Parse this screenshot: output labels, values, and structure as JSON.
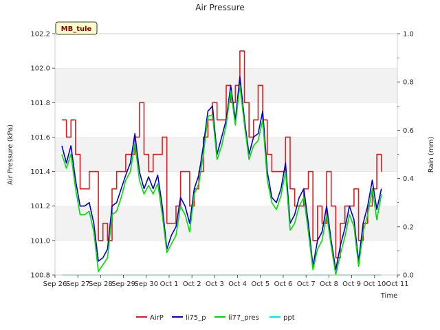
{
  "chart_data": {
    "type": "line",
    "title": "Air Pressure",
    "xlabel": "Time",
    "ylabel": "Air Pressure (kPa)",
    "y2label": "Rain (mm)",
    "badge": "MB_tule",
    "x_ticks": [
      "Sep 26",
      "Sep 27",
      "Sep 28",
      "Sep 29",
      "Sep 30",
      "Oct 1",
      "Oct 2",
      "Oct 3",
      "Oct 4",
      "Oct 5",
      "Oct 6",
      "Oct 7",
      "Oct 8",
      "Oct 9",
      "Oct 10",
      "Oct 11"
    ],
    "xlim": [
      0,
      15
    ],
    "ylim": [
      100.8,
      102.2
    ],
    "y_ticks": [
      "100.8",
      "101.0",
      "101.2",
      "101.4",
      "101.6",
      "101.8",
      "102.0",
      "102.2"
    ],
    "y2lim": [
      0.0,
      1.0
    ],
    "y2_ticks": [
      "0.0",
      "0.2",
      "0.4",
      "0.6",
      "0.8",
      "1.0"
    ],
    "grid_bands": true,
    "legend_position": "bottom",
    "x": [
      0.3,
      0.5,
      0.7,
      0.9,
      1.1,
      1.3,
      1.5,
      1.7,
      1.9,
      2.1,
      2.3,
      2.5,
      2.7,
      2.9,
      3.1,
      3.3,
      3.5,
      3.7,
      3.9,
      4.1,
      4.3,
      4.5,
      4.7,
      4.9,
      5.1,
      5.3,
      5.5,
      5.7,
      5.9,
      6.1,
      6.3,
      6.5,
      6.7,
      6.9,
      7.1,
      7.3,
      7.5,
      7.7,
      7.9,
      8.1,
      8.3,
      8.5,
      8.7,
      8.9,
      9.1,
      9.3,
      9.5,
      9.7,
      9.9,
      10.1,
      10.3,
      10.5,
      10.7,
      10.9,
      11.1,
      11.3,
      11.5,
      11.7,
      11.9,
      12.1,
      12.3,
      12.5,
      12.7,
      12.9,
      13.1,
      13.3,
      13.5,
      13.7,
      13.9,
      14.1,
      14.3
    ],
    "series": [
      {
        "name": "AirP",
        "color": "#e41a1c",
        "axis": "left",
        "values": [
          101.7,
          101.6,
          101.7,
          101.5,
          101.3,
          101.3,
          101.4,
          101.4,
          101.0,
          101.1,
          101.0,
          101.3,
          101.4,
          101.4,
          101.5,
          101.5,
          101.6,
          101.8,
          101.5,
          101.4,
          101.5,
          101.5,
          101.6,
          101.1,
          101.1,
          101.2,
          101.4,
          101.4,
          101.2,
          101.3,
          101.4,
          101.6,
          101.7,
          101.8,
          101.7,
          101.7,
          101.9,
          101.8,
          101.9,
          102.1,
          101.8,
          101.6,
          101.7,
          101.9,
          101.7,
          101.5,
          101.4,
          101.4,
          101.4,
          101.6,
          101.3,
          101.2,
          101.2,
          101.3,
          101.4,
          101.0,
          101.2,
          101.1,
          101.4,
          101.2,
          100.9,
          101.1,
          101.2,
          101.2,
          101.3,
          101.0,
          101.1,
          101.2,
          101.3,
          101.5,
          101.4
        ]
      },
      {
        "name": "li75_p",
        "color": "#0000cc",
        "axis": "left",
        "values": [
          101.55,
          101.45,
          101.55,
          101.35,
          101.2,
          101.2,
          101.22,
          101.1,
          100.88,
          100.9,
          100.95,
          101.2,
          101.22,
          101.3,
          101.38,
          101.45,
          101.62,
          101.4,
          101.3,
          101.37,
          101.3,
          101.38,
          101.2,
          100.95,
          101.03,
          101.08,
          101.25,
          101.2,
          101.1,
          101.3,
          101.38,
          101.55,
          101.75,
          101.78,
          101.5,
          101.6,
          101.7,
          101.9,
          101.7,
          101.95,
          101.7,
          101.5,
          101.6,
          101.62,
          101.75,
          101.4,
          101.25,
          101.22,
          101.3,
          101.45,
          101.1,
          101.15,
          101.25,
          101.3,
          101.1,
          100.85,
          101.0,
          101.05,
          101.2,
          101.0,
          100.83,
          100.97,
          101.07,
          101.2,
          101.12,
          100.88,
          101.1,
          101.2,
          101.35,
          101.18,
          101.3
        ]
      },
      {
        "name": "li77_pres",
        "color": "#00dd00",
        "axis": "left",
        "values": [
          101.5,
          101.42,
          101.5,
          101.3,
          101.15,
          101.15,
          101.17,
          101.05,
          100.82,
          100.86,
          100.9,
          101.15,
          101.17,
          101.25,
          101.35,
          101.4,
          101.57,
          101.35,
          101.27,
          101.32,
          101.27,
          101.33,
          101.15,
          100.93,
          100.98,
          101.03,
          101.2,
          101.15,
          101.05,
          101.27,
          101.33,
          101.5,
          101.72,
          101.73,
          101.47,
          101.55,
          101.67,
          101.87,
          101.67,
          101.9,
          101.67,
          101.47,
          101.55,
          101.58,
          101.7,
          101.35,
          101.22,
          101.18,
          101.26,
          101.4,
          101.06,
          101.1,
          101.2,
          101.25,
          101.05,
          100.83,
          100.95,
          101.0,
          101.15,
          100.97,
          100.8,
          100.92,
          101.02,
          101.15,
          101.08,
          100.85,
          101.05,
          101.15,
          101.3,
          101.12,
          101.27
        ]
      },
      {
        "name": "ppt",
        "color": "#00e5ee",
        "axis": "right",
        "values": [
          0,
          0,
          0,
          0,
          0,
          0,
          0,
          0,
          0,
          0,
          0,
          0,
          0,
          0,
          0,
          0,
          0,
          0,
          0,
          0,
          0,
          0,
          0,
          0,
          0,
          0,
          0,
          0,
          0,
          0,
          0,
          0,
          0,
          0,
          0,
          0,
          0,
          0,
          0,
          0,
          0,
          0,
          0,
          0,
          0,
          0,
          0,
          0,
          0,
          0,
          0,
          0,
          0,
          0,
          0,
          0,
          0,
          0,
          0,
          0,
          0,
          0,
          0,
          0,
          0,
          0,
          0,
          0,
          0,
          0,
          0
        ]
      }
    ]
  }
}
